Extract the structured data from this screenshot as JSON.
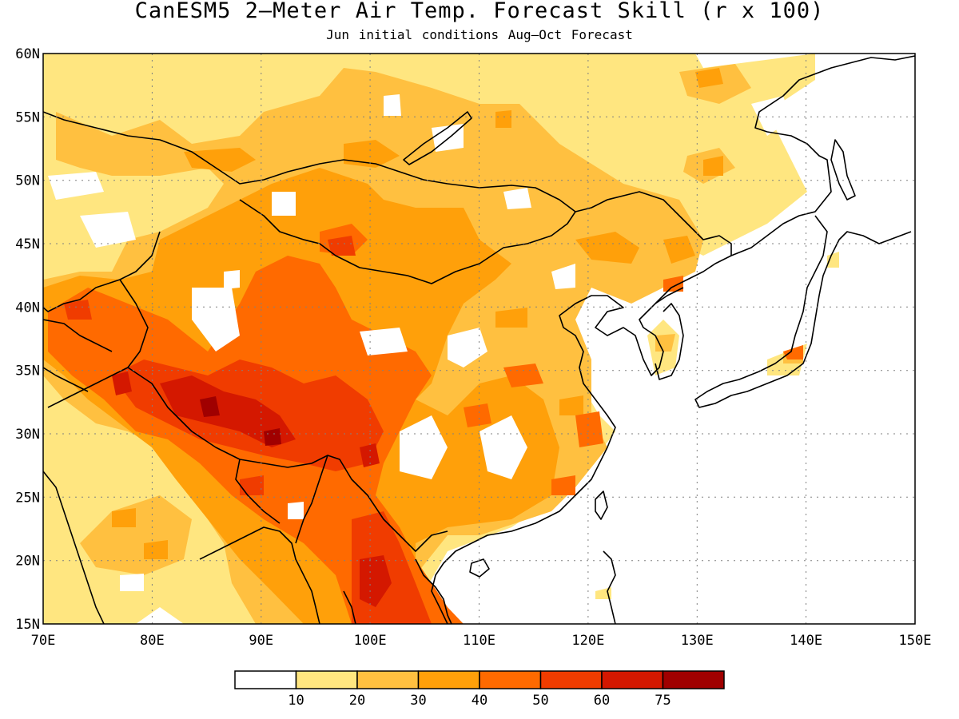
{
  "title": "CanESM5 2—Meter Air Temp. Forecast Skill (r x 100)",
  "subtitle": "Jun initial conditions  Aug—Oct Forecast",
  "map": {
    "lon_range": [
      70,
      150
    ],
    "lat_range": [
      15,
      60
    ],
    "lon_ticks": [
      {
        "value": 70,
        "label": "70E"
      },
      {
        "value": 80,
        "label": "80E"
      },
      {
        "value": 90,
        "label": "90E"
      },
      {
        "value": 100,
        "label": "100E"
      },
      {
        "value": 110,
        "label": "110E"
      },
      {
        "value": 120,
        "label": "120E"
      },
      {
        "value": 130,
        "label": "130E"
      },
      {
        "value": 140,
        "label": "140E"
      },
      {
        "value": 150,
        "label": "150E"
      }
    ],
    "lat_ticks": [
      {
        "value": 15,
        "label": "15N"
      },
      {
        "value": 20,
        "label": "20N"
      },
      {
        "value": 25,
        "label": "25N"
      },
      {
        "value": 30,
        "label": "30N"
      },
      {
        "value": 35,
        "label": "35N"
      },
      {
        "value": 40,
        "label": "40N"
      },
      {
        "value": 45,
        "label": "45N"
      },
      {
        "value": 50,
        "label": "50N"
      },
      {
        "value": 55,
        "label": "55N"
      },
      {
        "value": 60,
        "label": "60N"
      }
    ],
    "grid": "dotted"
  },
  "colorbar": {
    "levels": [
      "10",
      "20",
      "30",
      "40",
      "50",
      "60",
      "75"
    ],
    "colors": [
      "#ffffff",
      "#ffe680",
      "#ffc040",
      "#ffa00a",
      "#ff6a00",
      "#f03c00",
      "#d41800",
      "#a00000"
    ]
  }
}
